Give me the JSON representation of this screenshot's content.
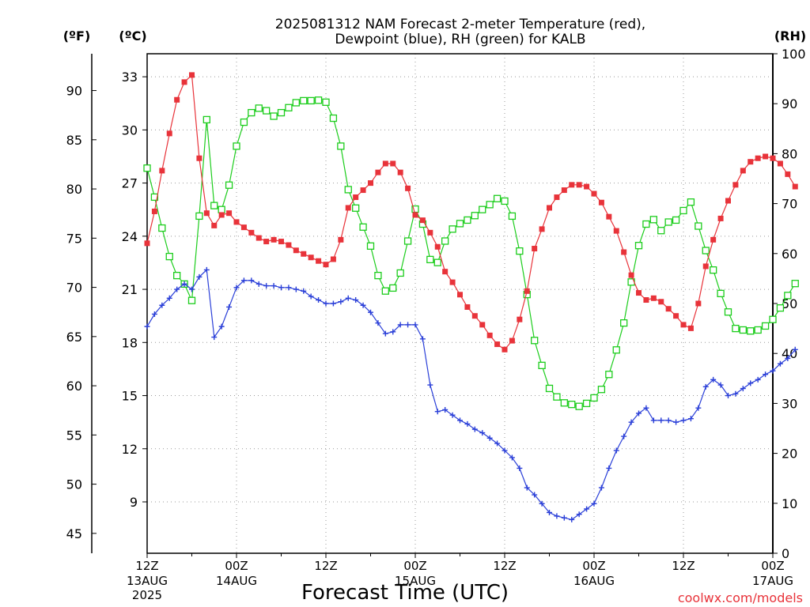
{
  "chart_data": {
    "type": "line",
    "title_line1": "2025081312 NAM Forecast 2-meter Temperature (red),",
    "title_line2": "Dewpoint (blue), RH (green) for KALB",
    "xlabel": "Forecast Time (UTC)",
    "credit": "coolwx.com/models",
    "unit_labels": {
      "fahrenheit": "(ºF)",
      "celsius": "(ºC)",
      "rh": "(RH)"
    },
    "x_ticks": [
      {
        "hour": 0,
        "label1": "12Z",
        "label2": "13AUG",
        "label3": "2025"
      },
      {
        "hour": 12,
        "label1": "00Z",
        "label2": "14AUG",
        "label3": ""
      },
      {
        "hour": 24,
        "label1": "12Z",
        "label2": "",
        "label3": ""
      },
      {
        "hour": 36,
        "label1": "00Z",
        "label2": "15AUG",
        "label3": ""
      },
      {
        "hour": 48,
        "label1": "12Z",
        "label2": "",
        "label3": ""
      },
      {
        "hour": 60,
        "label1": "00Z",
        "label2": "16AUG",
        "label3": ""
      },
      {
        "hour": 72,
        "label1": "12Z",
        "label2": "",
        "label3": ""
      },
      {
        "hour": 84,
        "label1": "00Z",
        "label2": "17AUG",
        "label3": ""
      }
    ],
    "x_range_hours": [
      0,
      84
    ],
    "celsius_axis": {
      "range": [
        6.1,
        34.3
      ],
      "ticks": [
        9,
        12,
        15,
        18,
        21,
        24,
        27,
        30,
        33
      ]
    },
    "fahrenheit_axis": {
      "ticks": [
        45,
        50,
        55,
        60,
        65,
        70,
        75,
        80,
        85,
        90
      ]
    },
    "rh_axis": {
      "range": [
        0,
        100
      ],
      "ticks": [
        0,
        10,
        20,
        30,
        40,
        50,
        60,
        70,
        80,
        90,
        100
      ]
    },
    "grid": true,
    "colors": {
      "temperature": "#e8333a",
      "dewpoint": "#2a3fd8",
      "rh": "#1ccd1c",
      "grid": "#999999"
    },
    "series": [
      {
        "id": "temperature",
        "unit": "C",
        "marker": "filled-square",
        "values": [
          23.6,
          25.4,
          27.7,
          29.8,
          31.7,
          32.7,
          33.1,
          28.4,
          25.3,
          24.6,
          25.2,
          25.3,
          24.8,
          24.5,
          24.2,
          23.9,
          23.7,
          23.8,
          23.7,
          23.5,
          23.2,
          23.0,
          22.8,
          22.6,
          22.4,
          22.7,
          23.8,
          25.6,
          26.2,
          26.6,
          27.0,
          27.6,
          28.1,
          28.1,
          27.6,
          26.7,
          25.2,
          24.9,
          24.2,
          23.4,
          22.0,
          21.4,
          20.7,
          20.0,
          19.5,
          19.0,
          18.4,
          17.9,
          17.6,
          18.1,
          19.3,
          20.9,
          23.3,
          24.4,
          25.6,
          26.2,
          26.6,
          26.9,
          26.9,
          26.8,
          26.4,
          25.9,
          25.1,
          24.3,
          23.1,
          21.8,
          20.8,
          20.4,
          20.5,
          20.3,
          19.9,
          19.5,
          19.0,
          18.8,
          20.2,
          22.3,
          23.8,
          25.0,
          26.0,
          26.9,
          27.7,
          28.2,
          28.4,
          28.5,
          28.4,
          28.1,
          27.5,
          26.8
        ]
      },
      {
        "id": "dewpoint",
        "unit": "C",
        "marker": "plus",
        "values": [
          18.9,
          19.6,
          20.1,
          20.5,
          21.0,
          21.3,
          21.0,
          21.7,
          22.1,
          18.3,
          18.9,
          20.0,
          21.1,
          21.5,
          21.5,
          21.3,
          21.2,
          21.2,
          21.1,
          21.1,
          21.0,
          20.9,
          20.6,
          20.4,
          20.2,
          20.2,
          20.3,
          20.5,
          20.4,
          20.1,
          19.7,
          19.1,
          18.5,
          18.6,
          19.0,
          19.0,
          19.0,
          18.2,
          15.6,
          14.1,
          14.2,
          13.9,
          13.6,
          13.4,
          13.1,
          12.9,
          12.6,
          12.3,
          11.9,
          11.5,
          10.9,
          9.8,
          9.4,
          8.9,
          8.4,
          8.2,
          8.1,
          8.0,
          8.3,
          8.6,
          8.9,
          9.8,
          10.9,
          11.9,
          12.7,
          13.5,
          14.0,
          14.3,
          13.6,
          13.6,
          13.6,
          13.5,
          13.6,
          13.7,
          14.3,
          15.5,
          15.9,
          15.6,
          15.0,
          15.1,
          15.4,
          15.7,
          15.9,
          16.2,
          16.4,
          16.8,
          17.1,
          17.6
        ]
      },
      {
        "id": "rh",
        "unit": "%",
        "marker": "open-square",
        "values": [
          77.1,
          71.3,
          65.1,
          59.4,
          55.6,
          53.9,
          50.6,
          67.5,
          86.8,
          69.6,
          68.8,
          73.7,
          81.5,
          86.3,
          88.2,
          89.1,
          88.6,
          87.5,
          88.2,
          89.2,
          90.2,
          90.6,
          90.6,
          90.7,
          90.3,
          87.1,
          81.5,
          72.8,
          69.1,
          65.3,
          61.5,
          55.6,
          52.5,
          53.1,
          56.1,
          62.5,
          68.9,
          65.9,
          58.8,
          58.2,
          62.5,
          64.9,
          66.0,
          66.7,
          67.6,
          68.8,
          69.8,
          71.0,
          70.5,
          67.5,
          60.5,
          51.8,
          42.6,
          37.6,
          33.0,
          31.3,
          30.1,
          29.8,
          29.4,
          30.0,
          31.1,
          32.8,
          35.8,
          40.7,
          46.1,
          54.3,
          61.6,
          65.9,
          66.8,
          64.6,
          66.3,
          66.7,
          68.6,
          70.3,
          65.5,
          60.6,
          56.7,
          52.0,
          48.3,
          45.0,
          44.7,
          44.5,
          44.7,
          45.5,
          46.8,
          49.1,
          51.6,
          54.0
        ]
      }
    ]
  }
}
